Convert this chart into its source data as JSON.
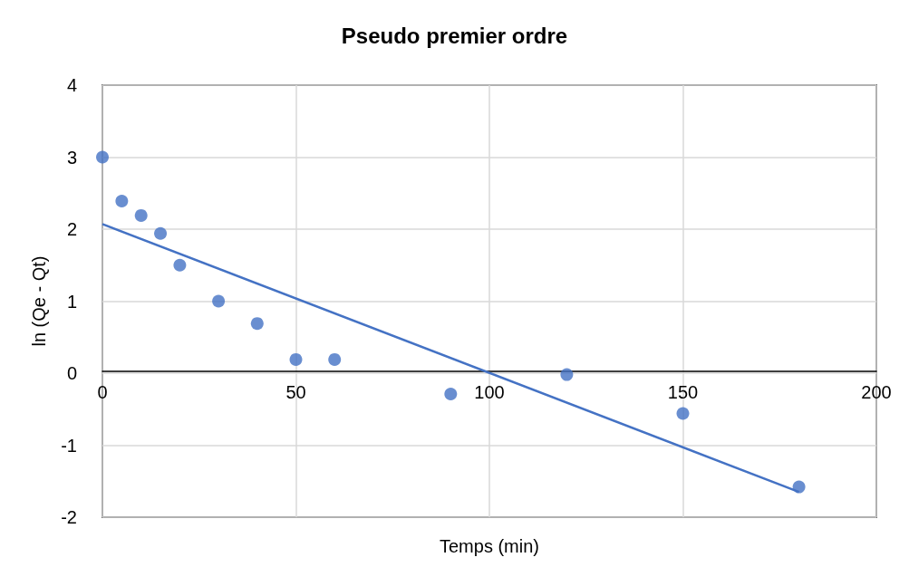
{
  "chart_data": {
    "type": "scatter",
    "title": "Pseudo premier ordre",
    "xlabel": "Temps (min)",
    "ylabel": "ln (Qe - Qt)",
    "xlim": [
      0,
      200
    ],
    "ylim": [
      -2,
      4
    ],
    "xticks": [
      0,
      50,
      100,
      150,
      200
    ],
    "yticks": [
      -2,
      -1,
      0,
      1,
      2,
      3,
      4
    ],
    "grid": true,
    "series": [
      {
        "marker": "circle",
        "color": "#4472c4",
        "x": [
          0,
          5,
          10,
          15,
          20,
          30,
          40,
          50,
          60,
          90,
          120,
          150,
          180
        ],
        "values": [
          3,
          2.39,
          2.19,
          1.94,
          1.5,
          1.0,
          0.69,
          0.19,
          0.19,
          -0.29,
          -0.02,
          -0.56,
          -1.58
        ]
      },
      {
        "type": "line",
        "marker": "none",
        "color": "#4472c4",
        "x": [
          0,
          180
        ],
        "values": [
          2.07,
          -1.65
        ]
      }
    ]
  }
}
